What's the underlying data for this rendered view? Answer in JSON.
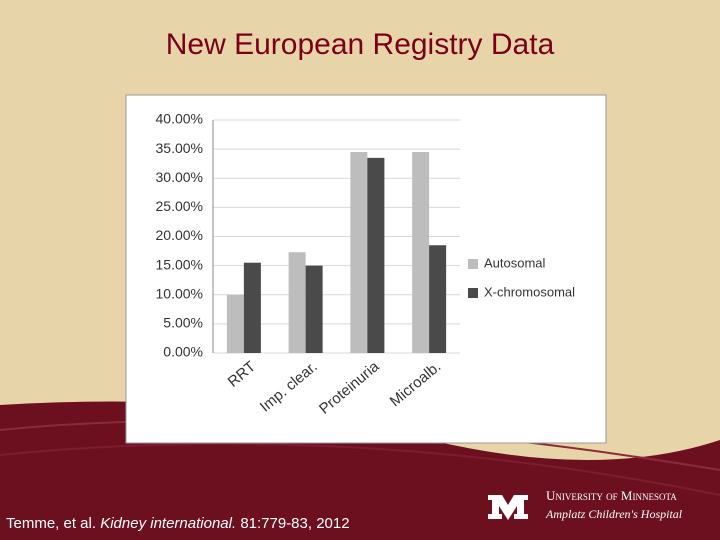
{
  "chart_data": {
    "type": "bar",
    "title": "New European Registry Data",
    "categories": [
      "RRT",
      "Imp. clear.",
      "Proteinuria",
      "Microalb."
    ],
    "series": [
      {
        "name": "Autosomal",
        "color": "#bdbdbd",
        "values": [
          10,
          17.3,
          34.5,
          34.5
        ]
      },
      {
        "name": "X-chromosomal",
        "color": "#4a4a4a",
        "values": [
          15.5,
          15,
          33.5,
          18.5
        ]
      }
    ],
    "ylim": [
      0,
      40
    ],
    "yticks": [
      {
        "value": 0,
        "label": "0.00%"
      },
      {
        "value": 5,
        "label": "5.00%"
      },
      {
        "value": 10,
        "label": "10.00%"
      },
      {
        "value": 15,
        "label": "15.00%"
      },
      {
        "value": 20,
        "label": "20.00%"
      },
      {
        "value": 25,
        "label": "25.00%"
      },
      {
        "value": 30,
        "label": "30.00%"
      },
      {
        "value": 35,
        "label": "35.00%"
      },
      {
        "value": 40,
        "label": "40.00%"
      }
    ],
    "grid": true,
    "legend": "right"
  },
  "citation": {
    "authors": "Temme, et al.",
    "journal": "Kidney international.",
    "details": "81:779-83, 2012"
  },
  "logo": {
    "line1": "University of Minnesota",
    "line2": "Amplatz Children's Hospital"
  }
}
